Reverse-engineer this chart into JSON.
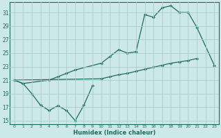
{
  "xlabel": "Humidex (Indice chaleur)",
  "bg_color": "#cde8e8",
  "grid_color": "#aacccc",
  "line_color": "#1a6b5a",
  "xlim": [
    -0.5,
    23.5
  ],
  "ylim": [
    14.5,
    32.5
  ],
  "yticks": [
    15,
    17,
    19,
    21,
    23,
    25,
    27,
    29,
    31
  ],
  "xticks": [
    0,
    1,
    2,
    3,
    4,
    5,
    6,
    7,
    8,
    9,
    10,
    11,
    12,
    13,
    14,
    15,
    16,
    17,
    18,
    19,
    20,
    21,
    22,
    23
  ],
  "line1_x": [
    0,
    1,
    2,
    3,
    4,
    5,
    6,
    7,
    8,
    9
  ],
  "line1_y": [
    21.0,
    20.5,
    19.0,
    17.3,
    16.5,
    17.2,
    16.5,
    15.0,
    17.3,
    20.2
  ],
  "line2_x": [
    0,
    1,
    4,
    5,
    6,
    7,
    10,
    11,
    12,
    13,
    14,
    15,
    16,
    17,
    18,
    19,
    20,
    21,
    23
  ],
  "line2_y": [
    21.0,
    20.5,
    21.0,
    21.5,
    22.0,
    22.5,
    23.5,
    24.5,
    25.5,
    25.0,
    25.2,
    30.7,
    30.3,
    31.7,
    32.0,
    31.0,
    31.0,
    28.8,
    23.2
  ],
  "line3_x": [
    0,
    10,
    11,
    12,
    13,
    14,
    15,
    16,
    17,
    18,
    19,
    20,
    21
  ],
  "line3_y": [
    21.0,
    21.2,
    21.5,
    21.8,
    22.0,
    22.3,
    22.6,
    22.9,
    23.2,
    23.5,
    23.7,
    23.9,
    24.2
  ]
}
